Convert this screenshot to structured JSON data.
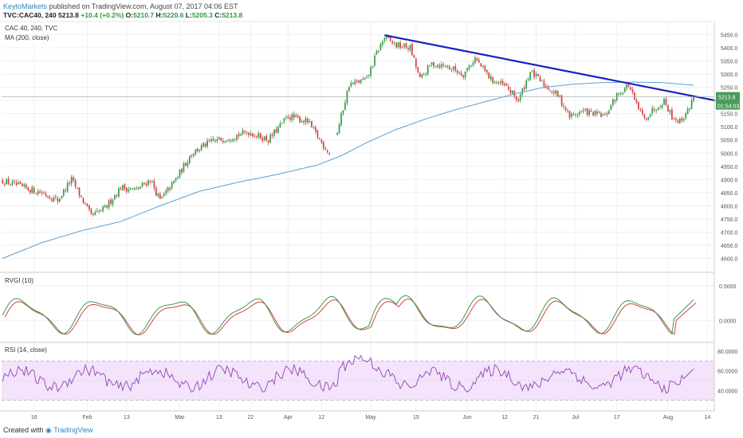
{
  "header": {
    "author": "KeytoMarkets",
    "published": "published on TradingView.com, August 07, 2017 04:06 EST",
    "symbol": "TVC:CAC40, 240",
    "last": "5213.8",
    "change": "+10.4 (+0.2%)",
    "ohlc": {
      "o_label": "O:",
      "o": "5210.7",
      "h_label": "H:",
      "h": "5220.6",
      "l_label": "L:",
      "l": "5205.3",
      "c_label": "C:",
      "c": "5213.8"
    }
  },
  "footer": {
    "created_with": "Created with",
    "brand": "TradingView"
  },
  "colors": {
    "up": "#3c9a4c",
    "down": "#d24545",
    "ma": "#5b9fd0",
    "trend": "#1a1fbf",
    "rvgi_green": "#3c9a4c",
    "rvgi_red": "#d24545",
    "rsi": "#9245b3",
    "rsi_band": "#f3e3fb",
    "price_label_bg": "#4a9a5a"
  },
  "chart_data": [
    {
      "type": "candlestick",
      "legend": [
        "CAC 40, 240, TVC",
        "MA (200, close)"
      ],
      "ylim": [
        4550,
        5500
      ],
      "y_ticks": [
        "5450.0",
        "5400.0",
        "5350.0",
        "5300.0",
        "5250.0",
        "5200.0",
        "5150.0",
        "5100.0",
        "5050.0",
        "5000.0",
        "4950.0",
        "4900.0",
        "4850.0",
        "4800.0",
        "4750.0",
        "4700.0",
        "4650.0",
        "4600.0"
      ],
      "last_price_label": "5213.8",
      "countdown_label": "01:54:03",
      "anchors": [
        {
          "i": 0,
          "v": 4895
        },
        {
          "i": 10,
          "v": 4870
        },
        {
          "i": 20,
          "v": 4850
        },
        {
          "i": 28,
          "v": 4820
        },
        {
          "i": 35,
          "v": 4900
        },
        {
          "i": 45,
          "v": 4760
        },
        {
          "i": 52,
          "v": 4790
        },
        {
          "i": 60,
          "v": 4870
        },
        {
          "i": 68,
          "v": 4860
        },
        {
          "i": 75,
          "v": 4900
        },
        {
          "i": 80,
          "v": 4820
        },
        {
          "i": 88,
          "v": 4900
        },
        {
          "i": 96,
          "v": 5000
        },
        {
          "i": 105,
          "v": 5040
        },
        {
          "i": 115,
          "v": 5060
        },
        {
          "i": 125,
          "v": 5080
        },
        {
          "i": 135,
          "v": 5050
        },
        {
          "i": 145,
          "v": 5140
        },
        {
          "i": 155,
          "v": 5120
        },
        {
          "i": 162,
          "v": 5040
        },
        {
          "i": 166,
          "v": 5000
        },
        {
          "i": 170,
          "v": 5080
        },
        {
          "i": 176,
          "v": 5260
        },
        {
          "i": 185,
          "v": 5280
        },
        {
          "i": 190,
          "v": 5380
        },
        {
          "i": 194,
          "v": 5440
        },
        {
          "i": 200,
          "v": 5410
        },
        {
          "i": 207,
          "v": 5400
        },
        {
          "i": 212,
          "v": 5280
        },
        {
          "i": 218,
          "v": 5340
        },
        {
          "i": 226,
          "v": 5330
        },
        {
          "i": 234,
          "v": 5300
        },
        {
          "i": 240,
          "v": 5360
        },
        {
          "i": 248,
          "v": 5280
        },
        {
          "i": 256,
          "v": 5250
        },
        {
          "i": 262,
          "v": 5200
        },
        {
          "i": 268,
          "v": 5310
        },
        {
          "i": 275,
          "v": 5260
        },
        {
          "i": 282,
          "v": 5220
        },
        {
          "i": 288,
          "v": 5140
        },
        {
          "i": 295,
          "v": 5160
        },
        {
          "i": 300,
          "v": 5150
        },
        {
          "i": 306,
          "v": 5140
        },
        {
          "i": 312,
          "v": 5220
        },
        {
          "i": 318,
          "v": 5260
        },
        {
          "i": 322,
          "v": 5180
        },
        {
          "i": 326,
          "v": 5130
        },
        {
          "i": 331,
          "v": 5170
        },
        {
          "i": 336,
          "v": 5200
        },
        {
          "i": 340,
          "v": 5140
        },
        {
          "i": 344,
          "v": 5120
        },
        {
          "i": 348,
          "v": 5160
        },
        {
          "i": 351,
          "v": 5214
        }
      ],
      "ma_anchors": [
        {
          "i": 0,
          "v": 4600
        },
        {
          "i": 20,
          "v": 4660
        },
        {
          "i": 40,
          "v": 4705
        },
        {
          "i": 60,
          "v": 4740
        },
        {
          "i": 80,
          "v": 4800
        },
        {
          "i": 100,
          "v": 4855
        },
        {
          "i": 120,
          "v": 4890
        },
        {
          "i": 140,
          "v": 4920
        },
        {
          "i": 160,
          "v": 4955
        },
        {
          "i": 172,
          "v": 4990
        },
        {
          "i": 185,
          "v": 5040
        },
        {
          "i": 200,
          "v": 5090
        },
        {
          "i": 215,
          "v": 5130
        },
        {
          "i": 230,
          "v": 5165
        },
        {
          "i": 245,
          "v": 5195
        },
        {
          "i": 260,
          "v": 5225
        },
        {
          "i": 275,
          "v": 5250
        },
        {
          "i": 290,
          "v": 5262
        },
        {
          "i": 305,
          "v": 5268
        },
        {
          "i": 320,
          "v": 5270
        },
        {
          "i": 335,
          "v": 5268
        },
        {
          "i": 351,
          "v": 5258
        }
      ],
      "trendline": [
        {
          "i": 194,
          "v": 5448
        },
        {
          "i": 362,
          "v": 5200
        }
      ],
      "visible_bar_count": 362,
      "gap_bars": {
        "from": 166,
        "to": 170
      },
      "x_ticks": [
        {
          "i": 16,
          "label": "16"
        },
        {
          "i": 43,
          "label": "Feb"
        },
        {
          "i": 63,
          "label": "13"
        },
        {
          "i": 90,
          "label": "Mar"
        },
        {
          "i": 110,
          "label": "13"
        },
        {
          "i": 126,
          "label": "22"
        },
        {
          "i": 145,
          "label": "Apr"
        },
        {
          "i": 162,
          "label": "12"
        },
        {
          "i": 187,
          "label": "May"
        },
        {
          "i": 210,
          "label": "15"
        },
        {
          "i": 236,
          "label": "Jun"
        },
        {
          "i": 255,
          "label": "12"
        },
        {
          "i": 271,
          "label": "21"
        },
        {
          "i": 291,
          "label": "Jul"
        },
        {
          "i": 312,
          "label": "17"
        },
        {
          "i": 338,
          "label": "Aug"
        },
        {
          "i": 358,
          "label": "14"
        }
      ]
    },
    {
      "type": "line",
      "legend": "RVGI (10)",
      "ylim": [
        -0.3,
        0.68
      ],
      "y_ticks": [
        "0.5000",
        "0.0000"
      ]
    },
    {
      "type": "line",
      "legend": "RSI (14, close)",
      "ylim": [
        20,
        88
      ],
      "y_ticks": [
        "80.0000",
        "60.0000",
        "40.0000"
      ],
      "last_value_label": "60.0000",
      "bands": [
        30,
        70
      ]
    }
  ]
}
